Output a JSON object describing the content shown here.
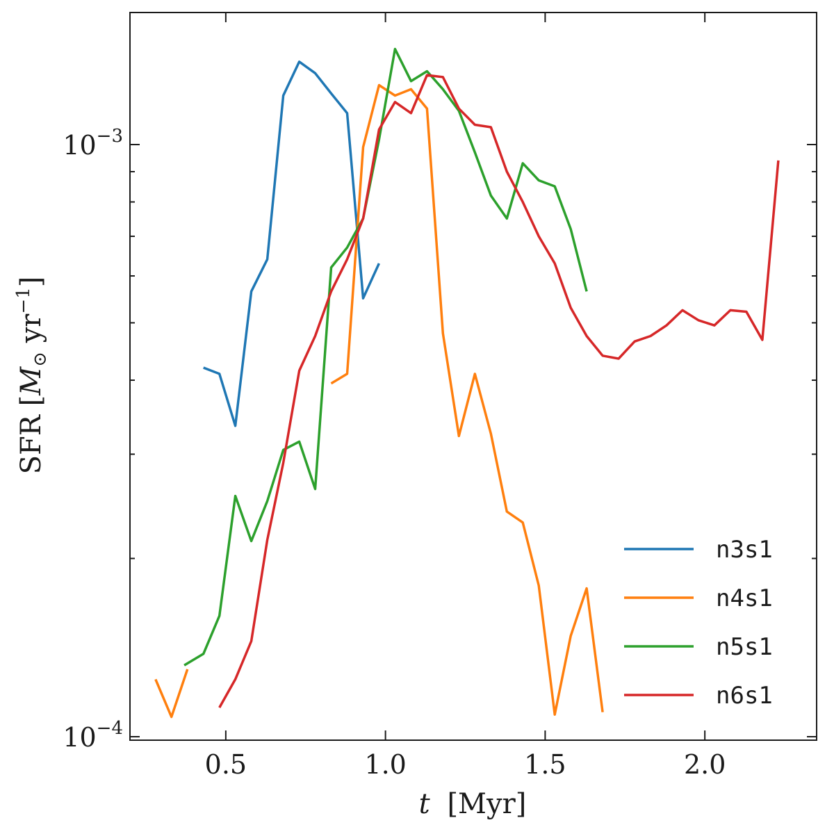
{
  "chart_data": {
    "type": "line",
    "title": "",
    "xlabel_italic": "t",
    "xlabel_unit": "[Myr]",
    "ylabel_prefix": "SFR [",
    "ylabel_msun": "M",
    "ylabel_sun_sub": "⊙",
    "ylabel_yr": " yr",
    "ylabel_exp": "−1",
    "ylabel_suffix": "]",
    "xlim": [
      0.2,
      2.35
    ],
    "ylim": [
      0.0001,
      0.0017
    ],
    "yscale": "log",
    "x_ticks": [
      {
        "value": 0.5,
        "label": "0.5"
      },
      {
        "value": 1.0,
        "label": "1.0"
      },
      {
        "value": 1.5,
        "label": "1.5"
      },
      {
        "value": 2.0,
        "label": "2.0"
      }
    ],
    "y_major_ticks": [
      {
        "value": 0.0001,
        "base": "10",
        "exp": "−4"
      },
      {
        "value": 0.001,
        "base": "10",
        "exp": "−3"
      }
    ],
    "y_minor_ticks": [
      0.0002,
      0.0003,
      0.0004,
      0.0005,
      0.0006,
      0.0007,
      0.0008,
      0.0009
    ],
    "legend_position": "lower-right",
    "series": [
      {
        "name": "n3s1",
        "color": "#1f77b4",
        "x": [
          0.43,
          0.48,
          0.53,
          0.58,
          0.63,
          0.68,
          0.73,
          0.78,
          0.83,
          0.88,
          0.93,
          0.98
        ],
        "y": [
          0.00042,
          0.00041,
          0.000335,
          0.000565,
          0.00064,
          0.00121,
          0.00138,
          0.00132,
          0.00122,
          0.00113,
          0.00055,
          0.00063
        ]
      },
      {
        "name": "n4s1",
        "color": "#ff7f0e",
        "x_segments": [
          [
            0.28,
            0.33,
            0.38
          ],
          [
            0.83,
            0.88,
            0.93,
            0.98,
            1.03,
            1.08,
            1.13,
            1.18,
            1.23,
            1.28,
            1.33,
            1.38,
            1.43,
            1.48,
            1.53,
            1.58,
            1.63,
            1.68
          ]
        ],
        "y_segments": [
          [
            0.000125,
            0.000108,
            0.00013
          ],
          [
            0.000395,
            0.00041,
            0.00099,
            0.00126,
            0.00121,
            0.00124,
            0.00115,
            0.00048,
            0.000322,
            0.00041,
            0.000325,
            0.00024,
            0.00023,
            0.00018,
            0.000109,
            0.000148,
            0.000178,
            0.00011
          ]
        ]
      },
      {
        "name": "n5s1",
        "color": "#2ca02c",
        "x": [
          0.37,
          0.43,
          0.48,
          0.53,
          0.58,
          0.63,
          0.68,
          0.73,
          0.78,
          0.83,
          0.88,
          0.93,
          0.98,
          1.03,
          1.08,
          1.13,
          1.18,
          1.23,
          1.28,
          1.33,
          1.38,
          1.43,
          1.48,
          1.53,
          1.58,
          1.63
        ],
        "y": [
          0.000132,
          0.000138,
          0.00016,
          0.000255,
          0.000214,
          0.00025,
          0.000305,
          0.000315,
          0.000262,
          0.00062,
          0.00067,
          0.00075,
          0.00102,
          0.00145,
          0.00128,
          0.00133,
          0.00124,
          0.00114,
          0.00097,
          0.00082,
          0.00075,
          0.00093,
          0.00087,
          0.00085,
          0.00072,
          0.000565
        ]
      },
      {
        "name": "n6s1",
        "color": "#d62728",
        "x": [
          0.48,
          0.53,
          0.58,
          0.63,
          0.68,
          0.73,
          0.78,
          0.83,
          0.88,
          0.93,
          0.98,
          1.03,
          1.08,
          1.13,
          1.18,
          1.23,
          1.28,
          1.33,
          1.38,
          1.43,
          1.48,
          1.53,
          1.58,
          1.63,
          1.68,
          1.73,
          1.78,
          1.83,
          1.88,
          1.93,
          1.98,
          2.03,
          2.08,
          2.13,
          2.18,
          2.23
        ],
        "y": [
          0.000112,
          0.000125,
          0.000145,
          0.000215,
          0.00029,
          0.000415,
          0.000475,
          0.000565,
          0.00064,
          0.00075,
          0.00106,
          0.00118,
          0.00113,
          0.00131,
          0.0013,
          0.00115,
          0.00108,
          0.00107,
          0.0009,
          0.0008,
          0.0007,
          0.00063,
          0.00053,
          0.000475,
          0.00044,
          0.000435,
          0.000465,
          0.000475,
          0.000495,
          0.000525,
          0.000505,
          0.000495,
          0.000525,
          0.000522,
          0.000468,
          0.00094
        ]
      }
    ]
  }
}
